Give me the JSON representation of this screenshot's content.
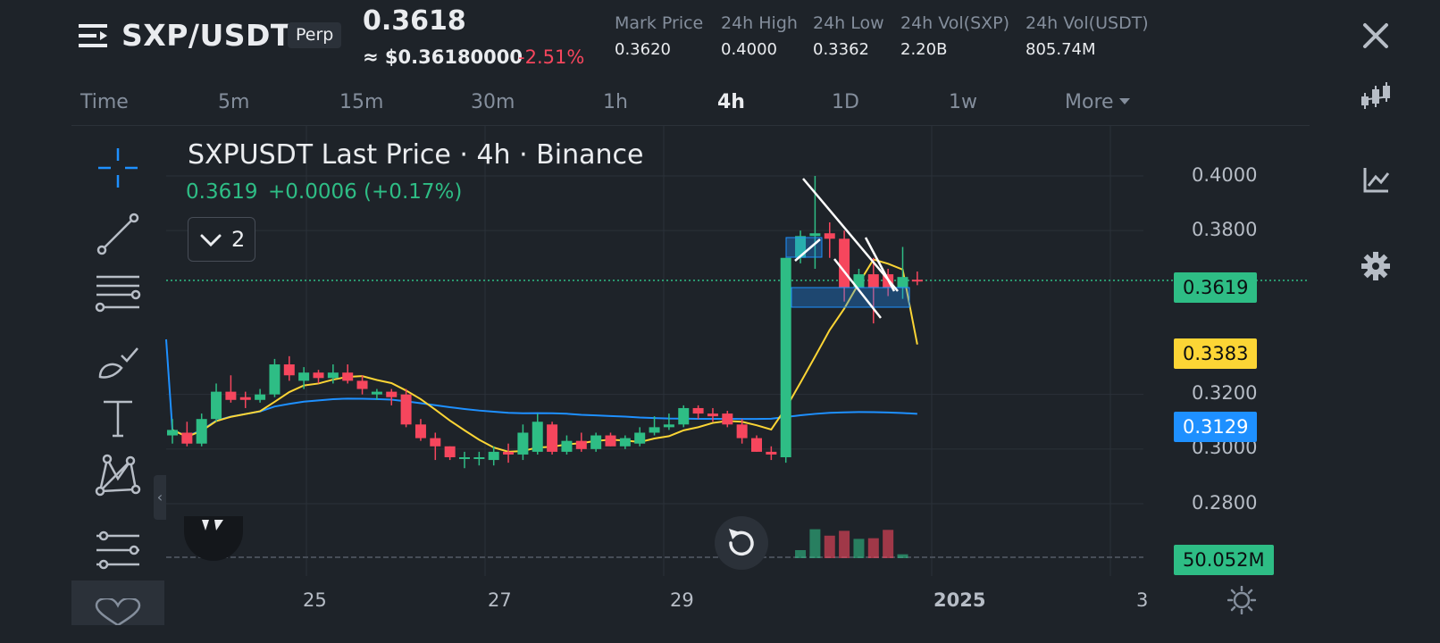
{
  "header": {
    "symbol": "SXP/USDT",
    "badge": "Perp",
    "last_price": "0.3618",
    "usd_approx": "≈ $0.36180000",
    "change_pct": "-2.51%",
    "stats": [
      {
        "label": "Mark Price",
        "value": "0.3620"
      },
      {
        "label": "24h High",
        "value": "0.4000"
      },
      {
        "label": "24h Low",
        "value": "0.3362"
      },
      {
        "label": "24h Vol(SXP)",
        "value": "2.20B"
      },
      {
        "label": "24h Vol(USDT)",
        "value": "805.74M"
      }
    ]
  },
  "right_toolbar": [
    "close-icon",
    "candlestick-icon",
    "line-chart-icon",
    "gear-icon"
  ],
  "intervals": [
    {
      "label": "Time",
      "active": false
    },
    {
      "label": "5m",
      "active": false
    },
    {
      "label": "15m",
      "active": false
    },
    {
      "label": "30m",
      "active": false
    },
    {
      "label": "1h",
      "active": false
    },
    {
      "label": "4h",
      "active": true
    },
    {
      "label": "1D",
      "active": false
    },
    {
      "label": "1w",
      "active": false
    },
    {
      "label": "More",
      "active": false
    }
  ],
  "chart": {
    "title": "SXPUSDT Last Price · 4h · Binance",
    "legend_price": "0.3619",
    "legend_change": "+0.0006 (+0.17%)",
    "indicator_count": "2",
    "price_ticks": [
      "0.4000",
      "0.3800",
      "0.3200",
      "0.3000",
      "0.2800"
    ],
    "tags": {
      "last": {
        "value": "0.3619",
        "color": "#2ebd85"
      },
      "ma_short": {
        "value": "0.3383",
        "color": "#fcd535"
      },
      "ma_long": {
        "value": "0.3129",
        "color": "#1e90ff"
      },
      "volume": {
        "value": "50.052M",
        "color": "#2ebd85"
      }
    },
    "date_labels": [
      {
        "label": "25",
        "bold": false
      },
      {
        "label": "27",
        "bold": false
      },
      {
        "label": "29",
        "bold": false
      },
      {
        "label": "2025",
        "bold": true
      },
      {
        "label": "3",
        "bold": false
      }
    ]
  },
  "chart_data": {
    "type": "candlestick",
    "title": "SXPUSDT Last Price · 4h · Binance",
    "interval": "4h",
    "y_range": [
      0.27,
      0.41
    ],
    "candles": [
      {
        "o": 0.305,
        "h": 0.311,
        "l": 0.302,
        "c": 0.307
      },
      {
        "o": 0.306,
        "h": 0.31,
        "l": 0.301,
        "c": 0.302
      },
      {
        "o": 0.302,
        "h": 0.313,
        "l": 0.301,
        "c": 0.311
      },
      {
        "o": 0.311,
        "h": 0.324,
        "l": 0.31,
        "c": 0.321
      },
      {
        "o": 0.321,
        "h": 0.327,
        "l": 0.317,
        "c": 0.318
      },
      {
        "o": 0.319,
        "h": 0.321,
        "l": 0.315,
        "c": 0.318
      },
      {
        "o": 0.318,
        "h": 0.322,
        "l": 0.317,
        "c": 0.32
      },
      {
        "o": 0.32,
        "h": 0.333,
        "l": 0.319,
        "c": 0.331
      },
      {
        "o": 0.331,
        "h": 0.334,
        "l": 0.325,
        "c": 0.327
      },
      {
        "o": 0.325,
        "h": 0.33,
        "l": 0.322,
        "c": 0.328
      },
      {
        "o": 0.328,
        "h": 0.329,
        "l": 0.324,
        "c": 0.326
      },
      {
        "o": 0.326,
        "h": 0.331,
        "l": 0.324,
        "c": 0.328
      },
      {
        "o": 0.328,
        "h": 0.331,
        "l": 0.324,
        "c": 0.325
      },
      {
        "o": 0.325,
        "h": 0.327,
        "l": 0.32,
        "c": 0.322
      },
      {
        "o": 0.32,
        "h": 0.322,
        "l": 0.318,
        "c": 0.321
      },
      {
        "o": 0.321,
        "h": 0.322,
        "l": 0.316,
        "c": 0.319
      },
      {
        "o": 0.32,
        "h": 0.322,
        "l": 0.308,
        "c": 0.309
      },
      {
        "o": 0.309,
        "h": 0.311,
        "l": 0.303,
        "c": 0.304
      },
      {
        "o": 0.304,
        "h": 0.306,
        "l": 0.296,
        "c": 0.301
      },
      {
        "o": 0.301,
        "h": 0.301,
        "l": 0.296,
        "c": 0.297
      },
      {
        "o": 0.297,
        "h": 0.299,
        "l": 0.293,
        "c": 0.297
      },
      {
        "o": 0.297,
        "h": 0.299,
        "l": 0.294,
        "c": 0.297
      },
      {
        "o": 0.296,
        "h": 0.301,
        "l": 0.294,
        "c": 0.299
      },
      {
        "o": 0.299,
        "h": 0.302,
        "l": 0.295,
        "c": 0.298
      },
      {
        "o": 0.298,
        "h": 0.309,
        "l": 0.296,
        "c": 0.306
      },
      {
        "o": 0.299,
        "h": 0.313,
        "l": 0.298,
        "c": 0.31
      },
      {
        "o": 0.309,
        "h": 0.31,
        "l": 0.298,
        "c": 0.299
      },
      {
        "o": 0.299,
        "h": 0.305,
        "l": 0.298,
        "c": 0.303
      },
      {
        "o": 0.303,
        "h": 0.306,
        "l": 0.299,
        "c": 0.3
      },
      {
        "o": 0.3,
        "h": 0.306,
        "l": 0.299,
        "c": 0.305
      },
      {
        "o": 0.305,
        "h": 0.306,
        "l": 0.301,
        "c": 0.301
      },
      {
        "o": 0.301,
        "h": 0.305,
        "l": 0.3,
        "c": 0.304
      },
      {
        "o": 0.302,
        "h": 0.308,
        "l": 0.301,
        "c": 0.306
      },
      {
        "o": 0.306,
        "h": 0.312,
        "l": 0.305,
        "c": 0.308
      },
      {
        "o": 0.308,
        "h": 0.313,
        "l": 0.307,
        "c": 0.309
      },
      {
        "o": 0.309,
        "h": 0.316,
        "l": 0.308,
        "c": 0.315
      },
      {
        "o": 0.315,
        "h": 0.316,
        "l": 0.311,
        "c": 0.313
      },
      {
        "o": 0.313,
        "h": 0.315,
        "l": 0.31,
        "c": 0.312
      },
      {
        "o": 0.313,
        "h": 0.314,
        "l": 0.308,
        "c": 0.309
      },
      {
        "o": 0.309,
        "h": 0.311,
        "l": 0.302,
        "c": 0.304
      },
      {
        "o": 0.304,
        "h": 0.305,
        "l": 0.299,
        "c": 0.299
      },
      {
        "o": 0.299,
        "h": 0.301,
        "l": 0.296,
        "c": 0.298
      },
      {
        "o": 0.297,
        "h": 0.37,
        "l": 0.295,
        "c": 0.37
      },
      {
        "o": 0.37,
        "h": 0.38,
        "l": 0.368,
        "c": 0.378
      },
      {
        "o": 0.378,
        "h": 0.4,
        "l": 0.366,
        "c": 0.379
      },
      {
        "o": 0.379,
        "h": 0.383,
        "l": 0.37,
        "c": 0.377
      },
      {
        "o": 0.377,
        "h": 0.38,
        "l": 0.354,
        "c": 0.359
      },
      {
        "o": 0.359,
        "h": 0.366,
        "l": 0.359,
        "c": 0.364
      },
      {
        "o": 0.364,
        "h": 0.37,
        "l": 0.346,
        "c": 0.359
      },
      {
        "o": 0.364,
        "h": 0.366,
        "l": 0.356,
        "c": 0.359
      },
      {
        "o": 0.359,
        "h": 0.374,
        "l": 0.355,
        "c": 0.363
      },
      {
        "o": 0.362,
        "h": 0.365,
        "l": 0.36,
        "c": 0.3619
      }
    ],
    "ma_short_last": 0.3383,
    "ma_long_last": 0.3129,
    "volume_last": "50.052M"
  }
}
